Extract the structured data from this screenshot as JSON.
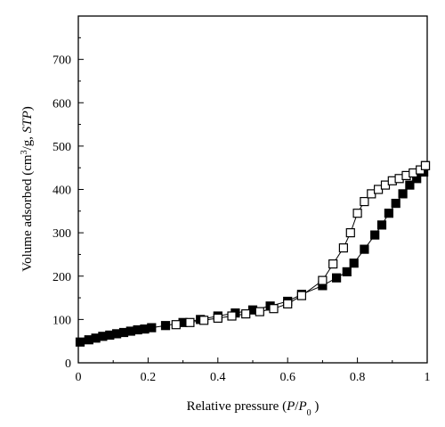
{
  "chart_data": {
    "type": "scatter",
    "xlabel": "Relative pressure (P/P0 )",
    "ylabel": "Volume adsorbed (cm3/g, STP)",
    "xlabel_parts": {
      "pre": "Relative pressure (",
      "p": "P",
      "slash": "/",
      "p0": "P",
      "sub": "0",
      "post": " )"
    },
    "ylabel_parts": {
      "pre": "Volume adsorbed (cm",
      "sup": "3",
      "post1": "/g, ",
      "stp": "STP",
      "post2": ")"
    },
    "xlim": [
      0,
      1
    ],
    "ylim": [
      0,
      800
    ],
    "x_ticks": [
      0,
      0.2,
      0.4,
      0.6,
      0.8,
      1
    ],
    "x_tick_labels": [
      "0",
      "0.2",
      "0.4",
      "0.6",
      "0.8",
      "1"
    ],
    "y_ticks": [
      0,
      100,
      200,
      300,
      400,
      500,
      600,
      700
    ],
    "y_tick_labels": [
      "0",
      "100",
      "200",
      "300",
      "400",
      "500",
      "600",
      "700"
    ],
    "grid": false,
    "colors": {
      "marker": "#000000",
      "axis": "#000000"
    },
    "series": [
      {
        "marker": "filled-square",
        "x": [
          0.005,
          0.03,
          0.05,
          0.07,
          0.09,
          0.11,
          0.13,
          0.15,
          0.17,
          0.19,
          0.21,
          0.25,
          0.3,
          0.35,
          0.4,
          0.45,
          0.5,
          0.55,
          0.6,
          0.64,
          0.7,
          0.74,
          0.77,
          0.79,
          0.82,
          0.85,
          0.87,
          0.89,
          0.91,
          0.93,
          0.95,
          0.97,
          0.99,
          0.995
        ],
        "y": [
          48,
          53,
          57,
          61,
          64,
          67,
          70,
          73,
          76,
          78,
          81,
          86,
          93,
          100,
          108,
          115,
          122,
          131,
          142,
          158,
          178,
          196,
          210,
          230,
          262,
          295,
          318,
          345,
          368,
          390,
          410,
          425,
          440,
          455
        ]
      },
      {
        "marker": "open-square",
        "x": [
          0.28,
          0.32,
          0.36,
          0.4,
          0.44,
          0.48,
          0.52,
          0.56,
          0.6,
          0.64,
          0.7,
          0.73,
          0.76,
          0.78,
          0.8,
          0.82,
          0.84,
          0.86,
          0.88,
          0.9,
          0.92,
          0.94,
          0.96,
          0.98,
          0.995
        ],
        "y": [
          88,
          93,
          98,
          103,
          108,
          113,
          118,
          125,
          136,
          155,
          190,
          228,
          265,
          300,
          345,
          372,
          390,
          400,
          410,
          420,
          425,
          432,
          438,
          445,
          455
        ]
      }
    ]
  }
}
